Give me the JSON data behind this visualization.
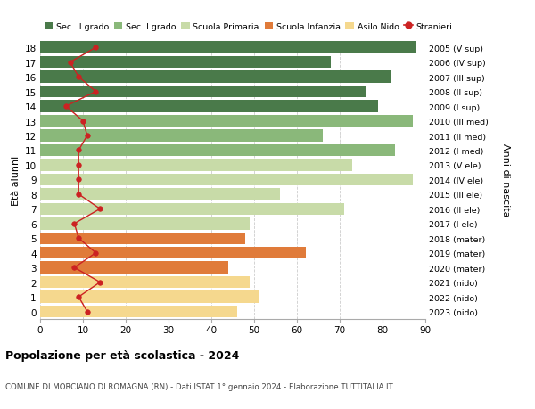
{
  "ages": [
    0,
    1,
    2,
    3,
    4,
    5,
    6,
    7,
    8,
    9,
    10,
    11,
    12,
    13,
    14,
    15,
    16,
    17,
    18
  ],
  "years": [
    "2023 (nido)",
    "2022 (nido)",
    "2021 (nido)",
    "2020 (mater)",
    "2019 (mater)",
    "2018 (mater)",
    "2017 (I ele)",
    "2016 (II ele)",
    "2015 (III ele)",
    "2014 (IV ele)",
    "2013 (V ele)",
    "2012 (I med)",
    "2011 (II med)",
    "2010 (III med)",
    "2009 (I sup)",
    "2008 (II sup)",
    "2007 (III sup)",
    "2006 (IV sup)",
    "2005 (V sup)"
  ],
  "bar_values": [
    46,
    51,
    49,
    44,
    62,
    48,
    49,
    71,
    56,
    87,
    73,
    83,
    66,
    87,
    79,
    76,
    82,
    68,
    88
  ],
  "bar_colors": [
    "#f5d88e",
    "#f5d88e",
    "#f5d88e",
    "#e07b3a",
    "#e07b3a",
    "#e07b3a",
    "#c8dba8",
    "#c8dba8",
    "#c8dba8",
    "#c8dba8",
    "#c8dba8",
    "#8ab87a",
    "#8ab87a",
    "#8ab87a",
    "#4a7a4a",
    "#4a7a4a",
    "#4a7a4a",
    "#4a7a4a",
    "#4a7a4a"
  ],
  "stranieri_values": [
    11,
    9,
    14,
    8,
    13,
    9,
    8,
    14,
    9,
    9,
    9,
    9,
    11,
    10,
    6,
    13,
    9,
    7,
    13
  ],
  "xlim": [
    0,
    90
  ],
  "xticks": [
    0,
    10,
    20,
    30,
    40,
    50,
    60,
    70,
    80,
    90
  ],
  "xlabel": "Età alunni",
  "ylabel_right": "Anni di nascita",
  "title": "Popolazione per età scolastica - 2024",
  "subtitle": "COMUNE DI MORCIANO DI ROMAGNA (RN) - Dati ISTAT 1° gennaio 2024 - Elaborazione TUTTITALIA.IT",
  "legend_labels": [
    "Sec. II grado",
    "Sec. I grado",
    "Scuola Primaria",
    "Scuola Infanzia",
    "Asilo Nido",
    "Stranieri"
  ],
  "legend_colors": [
    "#4a7a4a",
    "#8ab87a",
    "#c8dba8",
    "#e07b3a",
    "#f5d88e",
    "#cc2222"
  ],
  "bar_height": 0.82,
  "background_color": "#ffffff",
  "grid_color": "#cccccc"
}
